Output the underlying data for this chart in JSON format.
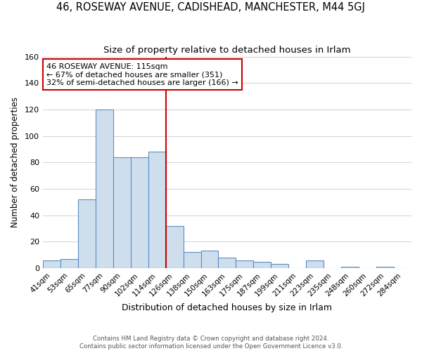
{
  "title": "46, ROSEWAY AVENUE, CADISHEAD, MANCHESTER, M44 5GJ",
  "subtitle": "Size of property relative to detached houses in Irlam",
  "xlabel": "Distribution of detached houses by size in Irlam",
  "ylabel": "Number of detached properties",
  "bin_labels": [
    "41sqm",
    "53sqm",
    "65sqm",
    "77sqm",
    "90sqm",
    "102sqm",
    "114sqm",
    "126sqm",
    "138sqm",
    "150sqm",
    "163sqm",
    "175sqm",
    "187sqm",
    "199sqm",
    "211sqm",
    "223sqm",
    "235sqm",
    "248sqm",
    "260sqm",
    "272sqm",
    "284sqm"
  ],
  "bar_values": [
    6,
    7,
    52,
    120,
    84,
    84,
    88,
    32,
    12,
    13,
    8,
    6,
    5,
    3,
    0,
    6,
    0,
    1,
    0,
    1,
    0
  ],
  "bar_color": "#cfdeed",
  "bar_edge_color": "#5b8ec4",
  "ylim": [
    0,
    160
  ],
  "yticks": [
    0,
    20,
    40,
    60,
    80,
    100,
    120,
    140,
    160
  ],
  "vline_x_index": 6,
  "vline_color": "#cc0000",
  "annotation_line1": "46 ROSEWAY AVENUE: 115sqm",
  "annotation_line2": "← 67% of detached houses are smaller (351)",
  "annotation_line3": "32% of semi-detached houses are larger (166) →",
  "annotation_box_color": "#ffffff",
  "annotation_box_edge": "#cc0000",
  "footer_line1": "Contains HM Land Registry data © Crown copyright and database right 2024.",
  "footer_line2": "Contains public sector information licensed under the Open Government Licence v3.0.",
  "title_fontsize": 10.5,
  "subtitle_fontsize": 9.5,
  "ylabel_fontsize": 8.5,
  "xlabel_fontsize": 9,
  "tick_fontsize": 7.5
}
